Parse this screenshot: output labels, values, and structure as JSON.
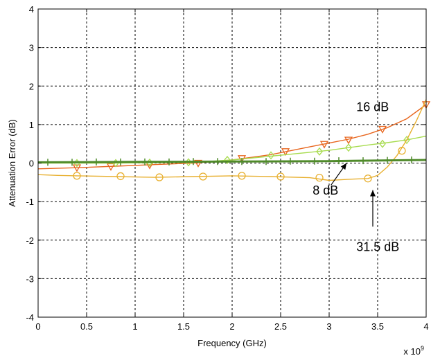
{
  "chart_data": {
    "type": "line",
    "title": "",
    "xlabel": "Frequency (GHz)",
    "ylabel": "Attenuation Error (dB)",
    "x_exponent_label": "x 10",
    "x_exponent_power": "9",
    "xlim": [
      0,
      4
    ],
    "ylim": [
      -4,
      4
    ],
    "xticks": [
      0,
      0.5,
      1,
      1.5,
      2,
      2.5,
      3,
      3.5,
      4
    ],
    "xtick_labels": [
      "0",
      "0.5",
      "1",
      "1.5",
      "2",
      "2.5",
      "3",
      "3.5",
      "4"
    ],
    "yticks": [
      -4,
      -3,
      -2,
      -1,
      0,
      1,
      2,
      3,
      4
    ],
    "ytick_labels": [
      "-4",
      "-3",
      "-2",
      "-1",
      "0",
      "1",
      "2",
      "3",
      "4"
    ],
    "grid": true,
    "series": [
      {
        "name": "",
        "color": "#e8661e",
        "marker": "triangle-down",
        "x": [
          0,
          0.4,
          0.8,
          1.2,
          1.6,
          2.0,
          2.2,
          2.4,
          2.6,
          2.8,
          3.0,
          3.2,
          3.4,
          3.6,
          3.8,
          4.0
        ],
        "y": [
          -0.15,
          -0.12,
          -0.08,
          -0.04,
          0.0,
          0.08,
          0.15,
          0.22,
          0.32,
          0.42,
          0.52,
          0.62,
          0.75,
          0.92,
          1.15,
          1.52
        ],
        "marker_x": [
          0.4,
          0.75,
          1.15,
          1.65,
          2.1,
          2.55,
          2.95,
          3.2,
          3.55,
          4.0
        ],
        "marker_y": [
          -0.12,
          -0.09,
          -0.05,
          0.0,
          0.12,
          0.3,
          0.49,
          0.6,
          0.88,
          1.52
        ]
      },
      {
        "name": "",
        "color": "#a8dc50",
        "marker": "diamond",
        "x": [
          0,
          0.4,
          0.8,
          1.2,
          1.6,
          2.0,
          2.4,
          2.8,
          3.0,
          3.2,
          3.4,
          3.6,
          3.8,
          4.0
        ],
        "y": [
          0.0,
          0.0,
          0.0,
          0.01,
          0.02,
          0.08,
          0.18,
          0.28,
          0.33,
          0.4,
          0.47,
          0.53,
          0.6,
          0.7
        ],
        "marker_x": [
          0.4,
          0.8,
          1.15,
          1.55,
          1.95,
          2.4,
          2.9,
          3.2,
          3.55,
          3.8
        ],
        "marker_y": [
          0.0,
          0.0,
          0.01,
          0.02,
          0.08,
          0.2,
          0.3,
          0.4,
          0.5,
          0.6
        ]
      },
      {
        "name": "",
        "color": "#e8b030",
        "marker": "circle",
        "x": [
          0,
          0.2,
          0.4,
          0.8,
          1.2,
          1.6,
          2.0,
          2.4,
          2.8,
          3.0,
          3.2,
          3.4,
          3.5,
          3.6,
          3.7,
          3.8,
          3.9,
          4.0
        ],
        "y": [
          -0.3,
          -0.32,
          -0.33,
          -0.35,
          -0.37,
          -0.35,
          -0.33,
          -0.35,
          -0.38,
          -0.45,
          -0.42,
          -0.4,
          -0.32,
          -0.1,
          0.2,
          0.6,
          1.1,
          1.65
        ],
        "marker_x": [
          0.4,
          0.85,
          1.25,
          1.7,
          2.1,
          2.5,
          2.9,
          3.4,
          3.75
        ],
        "marker_y": [
          -0.33,
          -0.34,
          -0.37,
          -0.35,
          -0.33,
          -0.35,
          -0.38,
          -0.4,
          0.32
        ]
      },
      {
        "name": "",
        "color": "#4f8a2a",
        "marker": "plus",
        "x": [
          0,
          1,
          2,
          3,
          4
        ],
        "y": [
          0.02,
          0.03,
          0.04,
          0.05,
          0.08
        ],
        "marker_x": [
          0.1,
          0.35,
          0.6,
          0.85,
          1.1,
          1.35,
          1.6,
          1.85,
          2.1,
          2.35,
          2.6,
          2.85,
          3.1,
          3.35,
          3.6,
          3.85
        ],
        "marker_y": [
          0.02,
          0.02,
          0.03,
          0.03,
          0.03,
          0.03,
          0.04,
          0.04,
          0.04,
          0.04,
          0.05,
          0.05,
          0.06,
          0.06,
          0.07,
          0.08
        ]
      }
    ],
    "annotations": [
      {
        "text": "16 dB",
        "x": 3.28,
        "y": 1.35,
        "arrow": false
      },
      {
        "text": "8 dB",
        "x": 2.83,
        "y": -0.82,
        "arrow": true,
        "tail": [
          3.02,
          -0.57
        ],
        "head": [
          3.18,
          0.0
        ]
      },
      {
        "text": "31.5 dB",
        "x": 3.28,
        "y": -2.28,
        "arrow": true,
        "tail": [
          3.45,
          -1.65
        ],
        "head": [
          3.45,
          -0.7
        ]
      }
    ]
  }
}
